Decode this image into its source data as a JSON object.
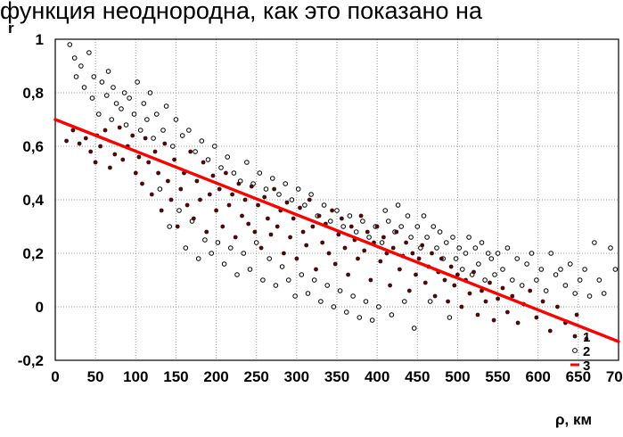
{
  "header_text": "функция неоднородна, как это показано на",
  "chart_data": {
    "type": "scatter",
    "title": "",
    "xlabel": "ρ, км",
    "ylabel": "r",
    "xlim": [
      0,
      700
    ],
    "ylim": [
      -0.2,
      1
    ],
    "x_ticks": [
      "0",
      "50",
      "100",
      "150",
      "200",
      "250",
      "300",
      "350",
      "400",
      "450",
      "500",
      "550",
      "600",
      "650",
      "700"
    ],
    "y_ticks": [
      "1",
      "0,8",
      "0,6",
      "0,4",
      "0,2",
      "0",
      "-0,2"
    ],
    "grid": true,
    "legend_position": "bottom-right",
    "colors": {
      "open_points": "#000000",
      "filled_points": "#4a0a0a",
      "trend_line": "#ff0000"
    },
    "series": [
      {
        "name": "1",
        "kind": "filled-points",
        "points": [
          [
            14,
            0.62
          ],
          [
            22,
            0.66
          ],
          [
            30,
            0.61
          ],
          [
            38,
            0.63
          ],
          [
            44,
            0.58
          ],
          [
            50,
            0.54
          ],
          [
            52,
            0.64
          ],
          [
            56,
            0.6
          ],
          [
            62,
            0.66
          ],
          [
            68,
            0.52
          ],
          [
            74,
            0.57
          ],
          [
            80,
            0.67
          ],
          [
            84,
            0.55
          ],
          [
            90,
            0.6
          ],
          [
            96,
            0.64
          ],
          [
            100,
            0.5
          ],
          [
            104,
            0.56
          ],
          [
            108,
            0.46
          ],
          [
            112,
            0.63
          ],
          [
            116,
            0.54
          ],
          [
            120,
            0.42
          ],
          [
            124,
            0.58
          ],
          [
            128,
            0.5
          ],
          [
            132,
            0.36
          ],
          [
            136,
            0.61
          ],
          [
            140,
            0.47
          ],
          [
            144,
            0.4
          ],
          [
            148,
            0.55
          ],
          [
            152,
            0.3
          ],
          [
            156,
            0.44
          ],
          [
            160,
            0.5
          ],
          [
            164,
            0.38
          ],
          [
            168,
            0.58
          ],
          [
            172,
            0.33
          ],
          [
            176,
            0.47
          ],
          [
            180,
            0.4
          ],
          [
            184,
            0.54
          ],
          [
            188,
            0.28
          ],
          [
            192,
            0.42
          ],
          [
            196,
            0.49
          ],
          [
            200,
            0.36
          ],
          [
            204,
            0.44
          ],
          [
            208,
            0.3
          ],
          [
            212,
            0.5
          ],
          [
            216,
            0.38
          ],
          [
            220,
            0.42
          ],
          [
            224,
            0.26
          ],
          [
            228,
            0.46
          ],
          [
            232,
            0.34
          ],
          [
            236,
            0.4
          ],
          [
            240,
            0.31
          ],
          [
            244,
            0.45
          ],
          [
            248,
            0.28
          ],
          [
            252,
            0.38
          ],
          [
            256,
            0.22
          ],
          [
            260,
            0.41
          ],
          [
            264,
            0.33
          ],
          [
            268,
            0.27
          ],
          [
            272,
            0.44
          ],
          [
            276,
            0.3
          ],
          [
            280,
            0.36
          ],
          [
            284,
            0.2
          ],
          [
            288,
            0.39
          ],
          [
            292,
            0.26
          ],
          [
            296,
            0.33
          ],
          [
            300,
            0.18
          ],
          [
            304,
            0.37
          ],
          [
            308,
            0.28
          ],
          [
            312,
            0.23
          ],
          [
            316,
            0.4
          ],
          [
            320,
            0.3
          ],
          [
            324,
            0.14
          ],
          [
            328,
            0.34
          ],
          [
            332,
            0.24
          ],
          [
            336,
            0.31
          ],
          [
            340,
            0.2
          ],
          [
            344,
            0.36
          ],
          [
            348,
            0.16
          ],
          [
            352,
            0.27
          ],
          [
            356,
            0.33
          ],
          [
            360,
            0.22
          ],
          [
            364,
            0.12
          ],
          [
            368,
            0.3
          ],
          [
            372,
            0.25
          ],
          [
            376,
            0.18
          ],
          [
            380,
            0.34
          ],
          [
            384,
            0.21
          ],
          [
            388,
            0.28
          ],
          [
            392,
            0.1
          ],
          [
            396,
            0.24
          ],
          [
            400,
            0.3
          ],
          [
            404,
            0.17
          ],
          [
            408,
            0.26
          ],
          [
            412,
            0.2
          ],
          [
            416,
            0.08
          ],
          [
            420,
            0.22
          ],
          [
            424,
            0.28
          ],
          [
            428,
            0.14
          ],
          [
            432,
            0.19
          ],
          [
            436,
            0.24
          ],
          [
            440,
            0.06
          ],
          [
            444,
            0.2
          ],
          [
            448,
            0.12
          ],
          [
            452,
            0.18
          ],
          [
            456,
            0.23
          ],
          [
            460,
            0.09
          ],
          [
            464,
            0.15
          ],
          [
            468,
            0.2
          ],
          [
            472,
            0.04
          ],
          [
            476,
            0.13
          ],
          [
            480,
            0.18
          ],
          [
            484,
            0.1
          ],
          [
            488,
            0.02
          ],
          [
            492,
            0.15
          ],
          [
            496,
            0.08
          ],
          [
            500,
            0.12
          ],
          [
            505,
            0.0
          ],
          [
            510,
            0.1
          ],
          [
            515,
            0.05
          ],
          [
            520,
            0.13
          ],
          [
            525,
            -0.03
          ],
          [
            530,
            0.06
          ],
          [
            535,
            0.02
          ],
          [
            540,
            0.09
          ],
          [
            545,
            -0.05
          ],
          [
            550,
            0.03
          ],
          [
            556,
            0.07
          ],
          [
            562,
            -0.02
          ],
          [
            568,
            0.04
          ],
          [
            575,
            -0.06
          ],
          [
            582,
            0.01
          ],
          [
            590,
            0.06
          ],
          [
            598,
            -0.04
          ],
          [
            606,
            0.02
          ],
          [
            615,
            -0.09
          ],
          [
            624,
            0.0
          ],
          [
            634,
            -0.06
          ],
          [
            648,
            -0.03
          ],
          [
            660,
            -0.12
          ]
        ]
      },
      {
        "name": "2",
        "kind": "open-points",
        "points": [
          [
            18,
            0.98
          ],
          [
            24,
            0.93
          ],
          [
            26,
            0.86
          ],
          [
            32,
            0.9
          ],
          [
            36,
            0.82
          ],
          [
            42,
            0.95
          ],
          [
            46,
            0.78
          ],
          [
            48,
            0.86
          ],
          [
            54,
            0.72
          ],
          [
            58,
            0.84
          ],
          [
            64,
            0.79
          ],
          [
            66,
            0.88
          ],
          [
            70,
            0.7
          ],
          [
            72,
            0.82
          ],
          [
            76,
            0.76
          ],
          [
            82,
            0.74
          ],
          [
            86,
            0.8
          ],
          [
            88,
            0.68
          ],
          [
            92,
            0.78
          ],
          [
            98,
            0.72
          ],
          [
            102,
            0.84
          ],
          [
            106,
            0.66
          ],
          [
            110,
            0.76
          ],
          [
            114,
            0.7
          ],
          [
            118,
            0.8
          ],
          [
            122,
            0.63
          ],
          [
            126,
            0.72
          ],
          [
            130,
            0.44
          ],
          [
            134,
            0.66
          ],
          [
            138,
            0.75
          ],
          [
            142,
            0.3
          ],
          [
            146,
            0.6
          ],
          [
            150,
            0.7
          ],
          [
            154,
            0.36
          ],
          [
            158,
            0.64
          ],
          [
            162,
            0.22
          ],
          [
            166,
            0.66
          ],
          [
            170,
            0.32
          ],
          [
            174,
            0.58
          ],
          [
            178,
            0.18
          ],
          [
            182,
            0.62
          ],
          [
            186,
            0.25
          ],
          [
            190,
            0.55
          ],
          [
            194,
            0.2
          ],
          [
            198,
            0.6
          ],
          [
            202,
            0.24
          ],
          [
            206,
            0.52
          ],
          [
            210,
            0.16
          ],
          [
            214,
            0.56
          ],
          [
            218,
            0.22
          ],
          [
            222,
            0.5
          ],
          [
            226,
            0.12
          ],
          [
            230,
            0.47
          ],
          [
            234,
            0.2
          ],
          [
            238,
            0.54
          ],
          [
            242,
            0.14
          ],
          [
            246,
            0.46
          ],
          [
            250,
            0.24
          ],
          [
            254,
            0.5
          ],
          [
            258,
            0.1
          ],
          [
            262,
            0.44
          ],
          [
            266,
            0.18
          ],
          [
            270,
            0.48
          ],
          [
            274,
            0.08
          ],
          [
            278,
            0.42
          ],
          [
            282,
            0.15
          ],
          [
            286,
            0.46
          ],
          [
            290,
            0.1
          ],
          [
            294,
            0.4
          ],
          [
            298,
            0.04
          ],
          [
            302,
            0.44
          ],
          [
            306,
            0.12
          ],
          [
            310,
            0.38
          ],
          [
            314,
            0.05
          ],
          [
            318,
            0.42
          ],
          [
            322,
            0.1
          ],
          [
            326,
            0.34
          ],
          [
            330,
            0.02
          ],
          [
            334,
            0.38
          ],
          [
            338,
            0.08
          ],
          [
            342,
            0.32
          ],
          [
            346,
            0.0
          ],
          [
            350,
            0.36
          ],
          [
            354,
            0.06
          ],
          [
            358,
            0.3
          ],
          [
            362,
            -0.02
          ],
          [
            366,
            0.34
          ],
          [
            370,
            0.04
          ],
          [
            374,
            0.28
          ],
          [
            378,
            -0.04
          ],
          [
            382,
            0.32
          ],
          [
            386,
            0.02
          ],
          [
            390,
            0.26
          ],
          [
            394,
            -0.05
          ],
          [
            398,
            0.3
          ],
          [
            402,
            0.0
          ],
          [
            406,
            0.24
          ],
          [
            410,
            0.36
          ],
          [
            414,
            0.32
          ],
          [
            418,
            -0.03
          ],
          [
            422,
            0.28
          ],
          [
            426,
            0.38
          ],
          [
            430,
            0.3
          ],
          [
            434,
            0.02
          ],
          [
            438,
            0.34
          ],
          [
            442,
            0.26
          ],
          [
            446,
            -0.08
          ],
          [
            450,
            0.3
          ],
          [
            454,
            0.22
          ],
          [
            458,
            0.34
          ],
          [
            462,
            0.26
          ],
          [
            466,
            0.02
          ],
          [
            470,
            0.3
          ],
          [
            474,
            0.22
          ],
          [
            478,
            0.28
          ],
          [
            482,
            0.18
          ],
          [
            486,
            0.24
          ],
          [
            490,
            -0.04
          ],
          [
            494,
            0.26
          ],
          [
            498,
            0.18
          ],
          [
            502,
            0.22
          ],
          [
            506,
            0.14
          ],
          [
            510,
            0.2
          ],
          [
            514,
            0.26
          ],
          [
            518,
            0.12
          ],
          [
            522,
            0.22
          ],
          [
            526,
            0.16
          ],
          [
            530,
            0.24
          ],
          [
            534,
            0.1
          ],
          [
            538,
            0.2
          ],
          [
            542,
            0.18
          ],
          [
            546,
            0.12
          ],
          [
            550,
            0.2
          ],
          [
            556,
            0.14
          ],
          [
            562,
            0.22
          ],
          [
            568,
            0.1
          ],
          [
            574,
            0.18
          ],
          [
            580,
            0.08
          ],
          [
            586,
            0.16
          ],
          [
            592,
            0.2
          ],
          [
            598,
            0.1
          ],
          [
            604,
            0.14
          ],
          [
            610,
            0.06
          ],
          [
            616,
            0.2
          ],
          [
            622,
            0.12
          ],
          [
            628,
            0.14
          ],
          [
            634,
            0.08
          ],
          [
            640,
            0.16
          ],
          [
            646,
            0.05
          ],
          [
            652,
            0.1
          ],
          [
            658,
            0.14
          ],
          [
            664,
            0.04
          ],
          [
            670,
            0.24
          ],
          [
            676,
            0.1
          ],
          [
            682,
            0.05
          ],
          [
            690,
            0.22
          ],
          [
            696,
            0.14
          ]
        ]
      },
      {
        "name": "3",
        "kind": "regression-line",
        "points": [
          [
            0,
            0.7
          ],
          [
            700,
            -0.13
          ]
        ]
      }
    ]
  }
}
